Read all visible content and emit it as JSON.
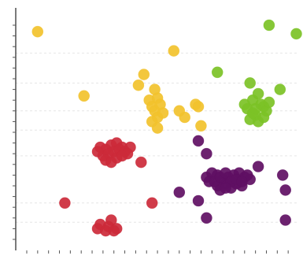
{
  "chart_data": {
    "type": "scatter",
    "title": "",
    "xlabel": "",
    "ylabel": "",
    "xlim": [
      0,
      100
    ],
    "ylim": [
      0,
      100
    ],
    "grid": true,
    "x_ticks": [
      0,
      4,
      8,
      12,
      16,
      20,
      24,
      28,
      32,
      36,
      40,
      44,
      48,
      52,
      56,
      60,
      64,
      68,
      72,
      76,
      80,
      84,
      88,
      92,
      96
    ],
    "y_ticks": [
      0,
      5,
      10,
      15,
      20,
      25,
      30,
      35,
      40,
      45,
      50,
      55,
      60,
      65,
      70,
      75,
      80,
      85,
      90,
      95,
      100
    ],
    "y_gridlines": [
      8,
      17,
      39,
      51,
      60,
      73,
      87
    ],
    "series": [
      {
        "color": "#f2c22c",
        "points": [
          [
            4,
            97
          ],
          [
            21,
            67
          ],
          [
            41,
            72
          ],
          [
            43,
            77
          ],
          [
            54,
            88
          ],
          [
            58,
            57
          ],
          [
            62,
            63
          ],
          [
            64,
            53
          ],
          [
            63,
            62
          ],
          [
            56,
            60
          ],
          [
            45,
            65
          ],
          [
            46,
            62
          ],
          [
            47,
            60
          ],
          [
            48,
            66
          ],
          [
            47,
            70
          ],
          [
            49,
            63
          ],
          [
            48,
            57
          ],
          [
            46,
            55
          ],
          [
            48,
            52
          ],
          [
            50,
            59
          ]
        ]
      },
      {
        "color": "#cc2a3a",
        "points": [
          [
            27,
            43
          ],
          [
            31,
            44
          ],
          [
            29,
            42
          ],
          [
            33,
            45
          ],
          [
            35,
            43
          ],
          [
            28,
            39
          ],
          [
            30,
            40
          ],
          [
            32,
            41
          ],
          [
            34,
            42
          ],
          [
            36,
            41
          ],
          [
            38,
            43
          ],
          [
            37,
            40
          ],
          [
            33,
            38
          ],
          [
            29,
            37
          ],
          [
            31,
            36
          ],
          [
            35,
            39
          ],
          [
            26,
            41
          ],
          [
            42,
            36
          ],
          [
            14,
            17
          ],
          [
            46,
            17
          ],
          [
            30,
            6
          ],
          [
            27,
            7
          ],
          [
            26,
            5
          ],
          [
            31,
            9
          ],
          [
            33,
            5
          ],
          [
            29,
            4
          ],
          [
            32,
            4
          ]
        ]
      },
      {
        "color": "#5f0f63",
        "points": [
          [
            63,
            46
          ],
          [
            66,
            40
          ],
          [
            56,
            22
          ],
          [
            63,
            18
          ],
          [
            66,
            10
          ],
          [
            85,
            34
          ],
          [
            94,
            30
          ],
          [
            95,
            23
          ],
          [
            95,
            9
          ],
          [
            66,
            29
          ],
          [
            68,
            31
          ],
          [
            70,
            30
          ],
          [
            72,
            28
          ],
          [
            74,
            29
          ],
          [
            76,
            30
          ],
          [
            78,
            31
          ],
          [
            80,
            29
          ],
          [
            82,
            28
          ],
          [
            73,
            26
          ],
          [
            75,
            24
          ],
          [
            77,
            26
          ],
          [
            79,
            25
          ],
          [
            70,
            25
          ],
          [
            67,
            27
          ],
          [
            69,
            27
          ],
          [
            71,
            29
          ],
          [
            73,
            31
          ],
          [
            75,
            27
          ],
          [
            77,
            28
          ],
          [
            81,
            30
          ],
          [
            71,
            23
          ],
          [
            73,
            24
          ],
          [
            79,
            27
          ]
        ]
      },
      {
        "color": "#7cc226",
        "points": [
          [
            89,
            100
          ],
          [
            99,
            96
          ],
          [
            70,
            78
          ],
          [
            82,
            73
          ],
          [
            93,
            70
          ],
          [
            83,
            65
          ],
          [
            85,
            68
          ],
          [
            87,
            62
          ],
          [
            81,
            61
          ],
          [
            84,
            58
          ],
          [
            86,
            63
          ],
          [
            88,
            60
          ],
          [
            85,
            55
          ],
          [
            82,
            56
          ],
          [
            87,
            57
          ],
          [
            89,
            64
          ],
          [
            83,
            59
          ],
          [
            80,
            63
          ],
          [
            84,
            61
          ]
        ]
      }
    ]
  }
}
